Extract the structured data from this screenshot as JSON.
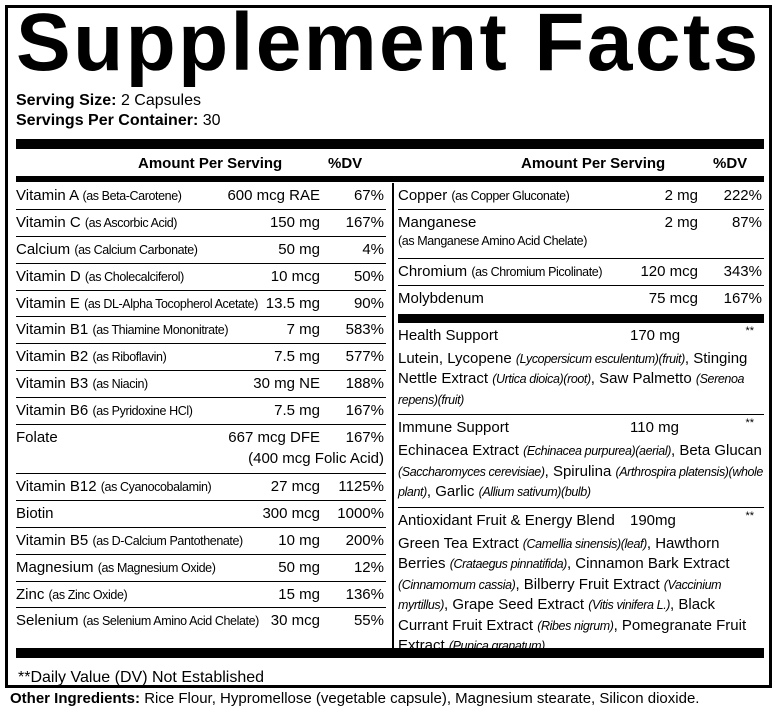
{
  "title": "Supplement Facts",
  "serving_size": {
    "label": "Serving Size:",
    "value": "2 Capsules"
  },
  "servings_per_container": {
    "label": "Servings Per Container:",
    "value": "30"
  },
  "headers": {
    "amount": "Amount Per Serving",
    "dv": "%DV"
  },
  "left_rows": [
    {
      "name": "Vitamin A",
      "source": "(as Beta-Carotene)",
      "amount": "600 mcg RAE",
      "dv": "67%"
    },
    {
      "name": "Vitamin C",
      "source": "(as Ascorbic Acid)",
      "amount": "150 mg",
      "dv": "167%"
    },
    {
      "name": "Calcium",
      "source": "(as Calcium Carbonate)",
      "amount": "50 mg",
      "dv": "4%"
    },
    {
      "name": "Vitamin D",
      "source": "(as Cholecalciferol)",
      "amount": "10 mcg",
      "dv": "50%"
    },
    {
      "name": "Vitamin E",
      "source": "(as DL-Alpha Tocopherol Acetate)",
      "amount": "13.5 mg",
      "dv": "90%"
    },
    {
      "name": "Vitamin B1",
      "source": "(as Thiamine Mononitrate)",
      "amount": "7 mg",
      "dv": "583%"
    },
    {
      "name": "Vitamin B2",
      "source": "(as Riboflavin)",
      "amount": "7.5 mg",
      "dv": "577%"
    },
    {
      "name": "Vitamin B3",
      "source": "(as Niacin)",
      "amount": "30 mg NE",
      "dv": "188%"
    },
    {
      "name": "Vitamin B6",
      "source": "(as Pyridoxine HCl)",
      "amount": "7.5 mg",
      "dv": "167%"
    },
    {
      "name": "Folate",
      "source": "",
      "amount": "667 mcg DFE",
      "dv": "167%",
      "note": "(400 mcg Folic Acid)"
    },
    {
      "name": "Vitamin B12",
      "source": "(as Cyanocobalamin)",
      "amount": "27 mcg",
      "dv": "1125%"
    },
    {
      "name": "Biotin",
      "source": "",
      "amount": "300 mcg",
      "dv": "1000%"
    },
    {
      "name": "Vitamin B5",
      "source": "(as D-Calcium Pantothenate)",
      "amount": "10 mg",
      "dv": "200%"
    },
    {
      "name": "Magnesium",
      "source": "(as Magnesium Oxide)",
      "amount": "50 mg",
      "dv": "12%"
    },
    {
      "name": "Zinc",
      "source": "(as Zinc Oxide)",
      "amount": "15 mg",
      "dv": "136%"
    },
    {
      "name": "Selenium",
      "source": "(as Selenium Amino Acid Chelate)",
      "amount": "30 mcg",
      "dv": "55%"
    }
  ],
  "right_rows": [
    {
      "name": "Copper",
      "source": "(as Copper Gluconate)",
      "amount": "2 mg",
      "dv": "222%"
    },
    {
      "name": "Manganese",
      "source": "(as Manganese Amino Acid Chelate)",
      "amount": "2 mg",
      "dv": "87%"
    },
    {
      "name": "Chromium",
      "source": "(as Chromium Picolinate)",
      "amount": "120 mcg",
      "dv": "343%"
    },
    {
      "name": "Molybdenum",
      "source": "",
      "amount": "75 mcg",
      "dv": "167%"
    }
  ],
  "blends": [
    {
      "name": "Health Support",
      "amount": "170 mg",
      "dv": "**",
      "parts": [
        [
          "Lutein, Lycopene ",
          "(Lycopersicum esculentum)(fruit)"
        ],
        [
          ", Stinging Nettle Extract ",
          "(Urtica dioica)(root)"
        ],
        [
          ", Saw Palmetto ",
          "(Serenoa repens)(fruit)"
        ]
      ]
    },
    {
      "name": "Immune Support",
      "amount": "110 mg",
      "dv": "**",
      "parts": [
        [
          "Echinacea Extract ",
          "(Echinacea purpurea)(aerial)"
        ],
        [
          ", Beta Glucan ",
          "(Saccharomyces cerevisiae)"
        ],
        [
          ", Spirulina ",
          "(Arthrospira platensis)(whole plant)"
        ],
        [
          ", Garlic ",
          "(Allium sativum)(bulb)"
        ]
      ]
    },
    {
      "name": "Antioxidant Fruit & Energy Blend",
      "amount": "190mg",
      "dv": "**",
      "parts": [
        [
          "Green Tea Extract ",
          "(Camellia sinensis)(leaf)"
        ],
        [
          ", Hawthorn Berries ",
          "(Crataegus pinnatifida)"
        ],
        [
          ", Cinnamon Bark Extract ",
          "(Cinnamomum cassia)"
        ],
        [
          ", Bilberry Fruit Extract ",
          "(Vaccinium myrtillus)"
        ],
        [
          ", Grape Seed Extract ",
          "(Vitis vinifera L.)"
        ],
        [
          ", Black Currant Fruit Extract ",
          "(Ribes nigrum)"
        ],
        [
          ", Pomegranate Fruit Extract ",
          "(Punica granatum)"
        ]
      ]
    }
  ],
  "footnote": "**Daily Value (DV) Not Established",
  "other_ingredients": {
    "label": "Other Ingredients:",
    "value": "Rice Flour, Hypromellose (vegetable capsule), Magnesium stearate, Silicon dioxide."
  }
}
